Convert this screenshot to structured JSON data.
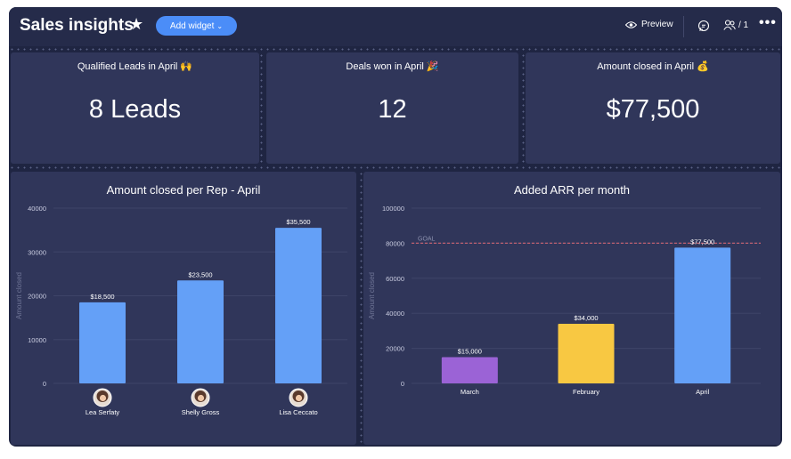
{
  "header": {
    "title": "Sales insights",
    "star_icon": "star-icon",
    "add_widget_label": "Add widget",
    "preview_label": "Preview",
    "members_count": "/ 1"
  },
  "kpis": [
    {
      "title": "Qualified Leads in April 🙌",
      "value": "8 Leads"
    },
    {
      "title": "Deals won in April 🎉",
      "value": "12"
    },
    {
      "title": "Amount closed in April 💰",
      "value": "$77,500"
    }
  ],
  "colors": {
    "background": "#1f2542",
    "card": "#30365a",
    "accent": "#4b8df8",
    "bar_blue": "#64a0f7",
    "bar_purple": "#9b63d6",
    "bar_yellow": "#f8c842",
    "goal_line": "#c06070"
  },
  "chart_data": [
    {
      "type": "bar",
      "title": "Amount closed per Rep - April",
      "ylabel": "Amount closed",
      "ylim": [
        0,
        40000
      ],
      "yticks": [
        0,
        10000,
        20000,
        30000,
        40000
      ],
      "categories": [
        "Lea Serfaty",
        "Shelly Gross",
        "Lisa Ceccato"
      ],
      "values": [
        18500,
        23500,
        35500
      ],
      "data_labels": [
        "$18,500",
        "$23,500",
        "$35,500"
      ],
      "colors": [
        "#64a0f7",
        "#64a0f7",
        "#64a0f7"
      ],
      "has_avatars": true
    },
    {
      "type": "bar",
      "title": "Added ARR per month",
      "ylabel": "Amount closed",
      "ylim": [
        0,
        100000
      ],
      "yticks": [
        0,
        20000,
        40000,
        60000,
        80000,
        100000
      ],
      "categories": [
        "March",
        "February",
        "April"
      ],
      "values": [
        15000,
        34000,
        77500
      ],
      "data_labels": [
        "$15,000",
        "$34,000",
        "$77,500"
      ],
      "colors": [
        "#9b63d6",
        "#f8c842",
        "#64a0f7"
      ],
      "goal": {
        "label": "GOAL",
        "value": 80000
      }
    }
  ]
}
